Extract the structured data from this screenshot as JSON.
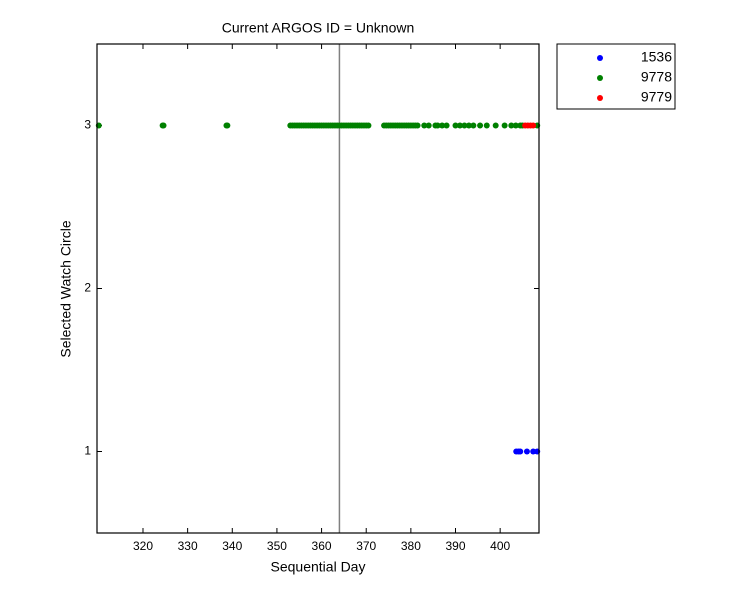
{
  "chart_data": {
    "type": "scatter",
    "title": "Current ARGOS ID = Unknown",
    "x_label": "Sequential Day",
    "y_label": "Selected Watch Circle",
    "xlim": [
      309.7,
      408.7
    ],
    "ylim": [
      0.5,
      3.5
    ],
    "xticks": [
      320,
      330,
      340,
      350,
      360,
      370,
      380,
      390,
      400
    ],
    "yticks": [
      1,
      2,
      3
    ],
    "reference_x": 364,
    "reference_color": "#808080",
    "legend": "outside-top-right",
    "series": [
      {
        "name": "1536",
        "color": "#0000ff",
        "x": [
          403.6,
          404.1,
          404.5,
          406,
          407.4,
          408.3
        ],
        "y": [
          1,
          1,
          1,
          1,
          1,
          1
        ]
      },
      {
        "name": "9778",
        "color": "#008000",
        "x": [
          310.1,
          324.4,
          324.6,
          338.7,
          338.9,
          353,
          353.5,
          354,
          354.5,
          355,
          355.5,
          356,
          356.5,
          357,
          357.5,
          358,
          358.5,
          359,
          359.5,
          360,
          360.5,
          361,
          361.5,
          362,
          362.5,
          363,
          363.5,
          364,
          364.5,
          365,
          365.5,
          366,
          366.5,
          367,
          367.5,
          368,
          368.5,
          369,
          369.5,
          370,
          370.5,
          374,
          374.5,
          375,
          375.5,
          376,
          376.5,
          377,
          377.5,
          378,
          378.5,
          379,
          379.5,
          380,
          380.5,
          381,
          381.5,
          383,
          384,
          385.5,
          386,
          387,
          388,
          390,
          391,
          392,
          393,
          394,
          395.5,
          397,
          399,
          401,
          402.5,
          403.5,
          404.5,
          405,
          408.3
        ],
        "y": [
          3,
          3,
          3,
          3,
          3,
          3,
          3,
          3,
          3,
          3,
          3,
          3,
          3,
          3,
          3,
          3,
          3,
          3,
          3,
          3,
          3,
          3,
          3,
          3,
          3,
          3,
          3,
          3,
          3,
          3,
          3,
          3,
          3,
          3,
          3,
          3,
          3,
          3,
          3,
          3,
          3,
          3,
          3,
          3,
          3,
          3,
          3,
          3,
          3,
          3,
          3,
          3,
          3,
          3,
          3,
          3,
          3,
          3,
          3,
          3,
          3,
          3,
          3,
          3,
          3,
          3,
          3,
          3,
          3,
          3,
          3,
          3,
          3,
          3,
          3,
          3,
          3
        ]
      },
      {
        "name": "9779",
        "color": "#ff0000",
        "x": [
          405.6,
          406.2,
          406.8,
          407.4
        ],
        "y": [
          3,
          3,
          3,
          3
        ]
      }
    ]
  }
}
